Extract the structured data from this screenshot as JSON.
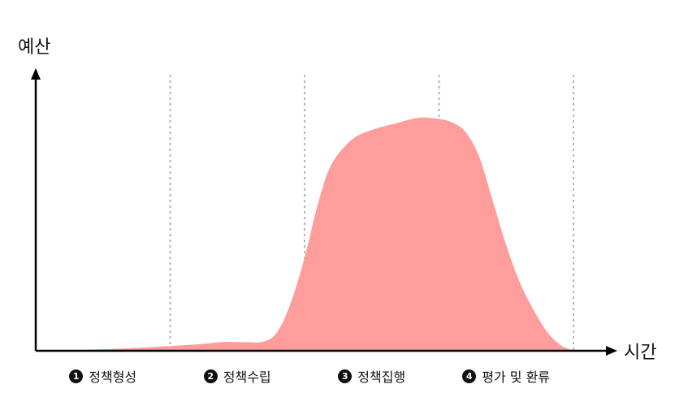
{
  "chart_data": {
    "type": "area",
    "title": "",
    "xlabel": "시간",
    "ylabel": "예산",
    "grid": false,
    "legend": "none",
    "colors": {
      "area": "#ff9c9c",
      "axis": "#000000",
      "divider": "#b5b5b5"
    },
    "xlim": [
      0,
      4
    ],
    "ylim": [
      0,
      100
    ],
    "dividers": [
      1,
      2,
      3,
      4
    ],
    "stages": [
      {
        "number": "1",
        "label": "정책형성",
        "center": 0.5
      },
      {
        "number": "2",
        "label": "정책수립",
        "center": 1.5
      },
      {
        "number": "3",
        "label": "정책집행",
        "center": 2.5
      },
      {
        "number": "4",
        "label": "평가 및 환류",
        "center": 3.5
      }
    ],
    "series": [
      {
        "x": [
          0,
          0.3,
          0.6,
          0.9,
          1.2,
          1.4,
          1.55,
          1.7,
          1.8,
          1.9,
          2.0,
          2.1,
          2.2,
          2.35,
          2.5,
          2.7,
          2.85,
          3.0,
          3.1,
          3.2,
          3.3,
          3.4,
          3.5,
          3.6,
          3.7,
          3.8,
          3.9,
          4.0
        ],
        "values": [
          0,
          0.3,
          0.8,
          1.6,
          2.6,
          3.6,
          3.5,
          3.8,
          8,
          20,
          38,
          60,
          76,
          86,
          90,
          93,
          95,
          94.5,
          93,
          89,
          79,
          61,
          43,
          28,
          17,
          8,
          2.5,
          0
        ]
      }
    ]
  }
}
